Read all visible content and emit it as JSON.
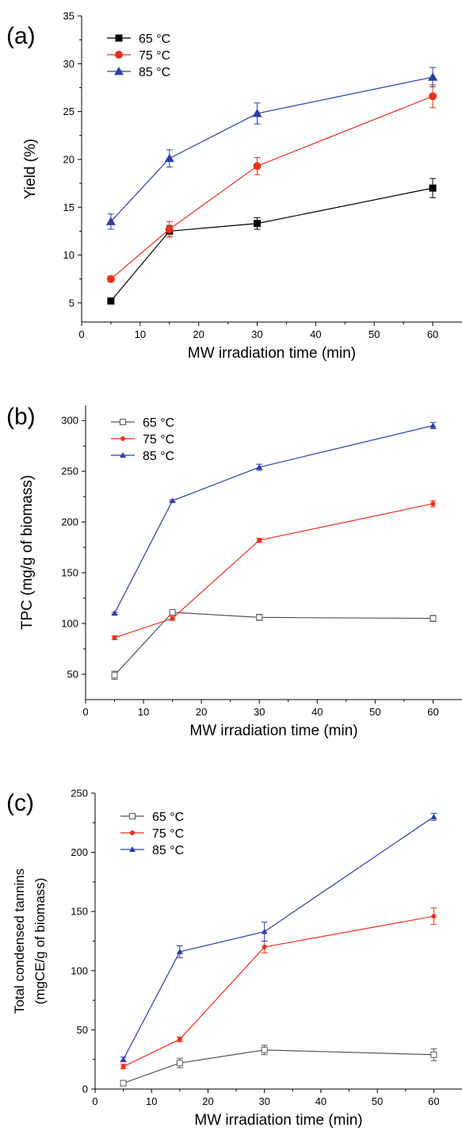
{
  "chart_data": [
    {
      "panel_label": "(a)",
      "type": "line",
      "ylabel": "Yield (%)",
      "xlabel": "MW irradiation time (min)",
      "xlim": [
        0,
        65
      ],
      "ylim": [
        3,
        35
      ],
      "xticks": [
        0,
        10,
        20,
        30,
        40,
        50,
        60
      ],
      "yticks": [
        5,
        10,
        15,
        20,
        25,
        30,
        35
      ],
      "legend_position": "top-left",
      "x": [
        5,
        15,
        30,
        60
      ],
      "series": [
        {
          "name": "65 °C",
          "color": "#000000",
          "marker": "square-filled",
          "values": [
            5.2,
            12.5,
            13.3,
            17.0
          ],
          "errors": [
            0.2,
            0.6,
            0.6,
            1.0
          ]
        },
        {
          "name": "75 °C",
          "color": "#e8321e",
          "marker": "circle-filled",
          "values": [
            7.5,
            12.7,
            19.3,
            26.6
          ],
          "errors": [
            0.3,
            0.8,
            0.9,
            1.2
          ]
        },
        {
          "name": "85 °C",
          "color": "#2e3da0",
          "marker": "triangle-filled",
          "values": [
            13.5,
            20.1,
            24.8,
            28.6
          ],
          "errors": [
            0.8,
            0.9,
            1.1,
            1.0
          ]
        }
      ]
    },
    {
      "panel_label": "(b)",
      "type": "line",
      "ylabel": "TPC (mg/g of biomass)",
      "xlabel": "MW irradiation time (min)",
      "xlim": [
        0,
        65
      ],
      "ylim": [
        25,
        315
      ],
      "xticks": [
        0,
        10,
        20,
        30,
        40,
        50,
        60
      ],
      "yticks": [
        50,
        100,
        150,
        200,
        250,
        300
      ],
      "legend_position": "top-left",
      "x": [
        5,
        15,
        30,
        60
      ],
      "series": [
        {
          "name": "65 °C",
          "color": "#555555",
          "marker": "square-open",
          "values": [
            49,
            111,
            106,
            105
          ],
          "errors": [
            4,
            2,
            3,
            3
          ]
        },
        {
          "name": "75 °C",
          "color": "#e8321e",
          "marker": "circle-small",
          "values": [
            86,
            105,
            182,
            218
          ],
          "errors": [
            2,
            2,
            2,
            3
          ]
        },
        {
          "name": "85 °C",
          "color": "#2e3da0",
          "marker": "triangle-small",
          "values": [
            110,
            221,
            254,
            295
          ],
          "errors": [
            1,
            1,
            3,
            3
          ]
        }
      ]
    },
    {
      "panel_label": "(c)",
      "type": "line",
      "ylabel_line1": "Total condensed tannins",
      "ylabel_line2": "(mgCE/g of biomass)",
      "xlabel": "MW irradiation time (min)",
      "xlim": [
        0,
        65
      ],
      "ylim": [
        0,
        250
      ],
      "xticks": [
        0,
        10,
        20,
        30,
        40,
        50,
        60
      ],
      "yticks": [
        0,
        50,
        100,
        150,
        200,
        250
      ],
      "legend_position": "top-left",
      "x": [
        5,
        15,
        30,
        60
      ],
      "series": [
        {
          "name": "65 °C",
          "color": "#555555",
          "marker": "square-open",
          "values": [
            5,
            22,
            33,
            29
          ],
          "errors": [
            1,
            4,
            4,
            5
          ]
        },
        {
          "name": "75 °C",
          "color": "#e8321e",
          "marker": "circle-small",
          "values": [
            19,
            42,
            120,
            146
          ],
          "errors": [
            2,
            2,
            5,
            7
          ]
        },
        {
          "name": "85 °C",
          "color": "#2e3da0",
          "marker": "triangle-small",
          "values": [
            25,
            116,
            133,
            230
          ],
          "errors": [
            2,
            5,
            8,
            3
          ]
        }
      ]
    }
  ]
}
